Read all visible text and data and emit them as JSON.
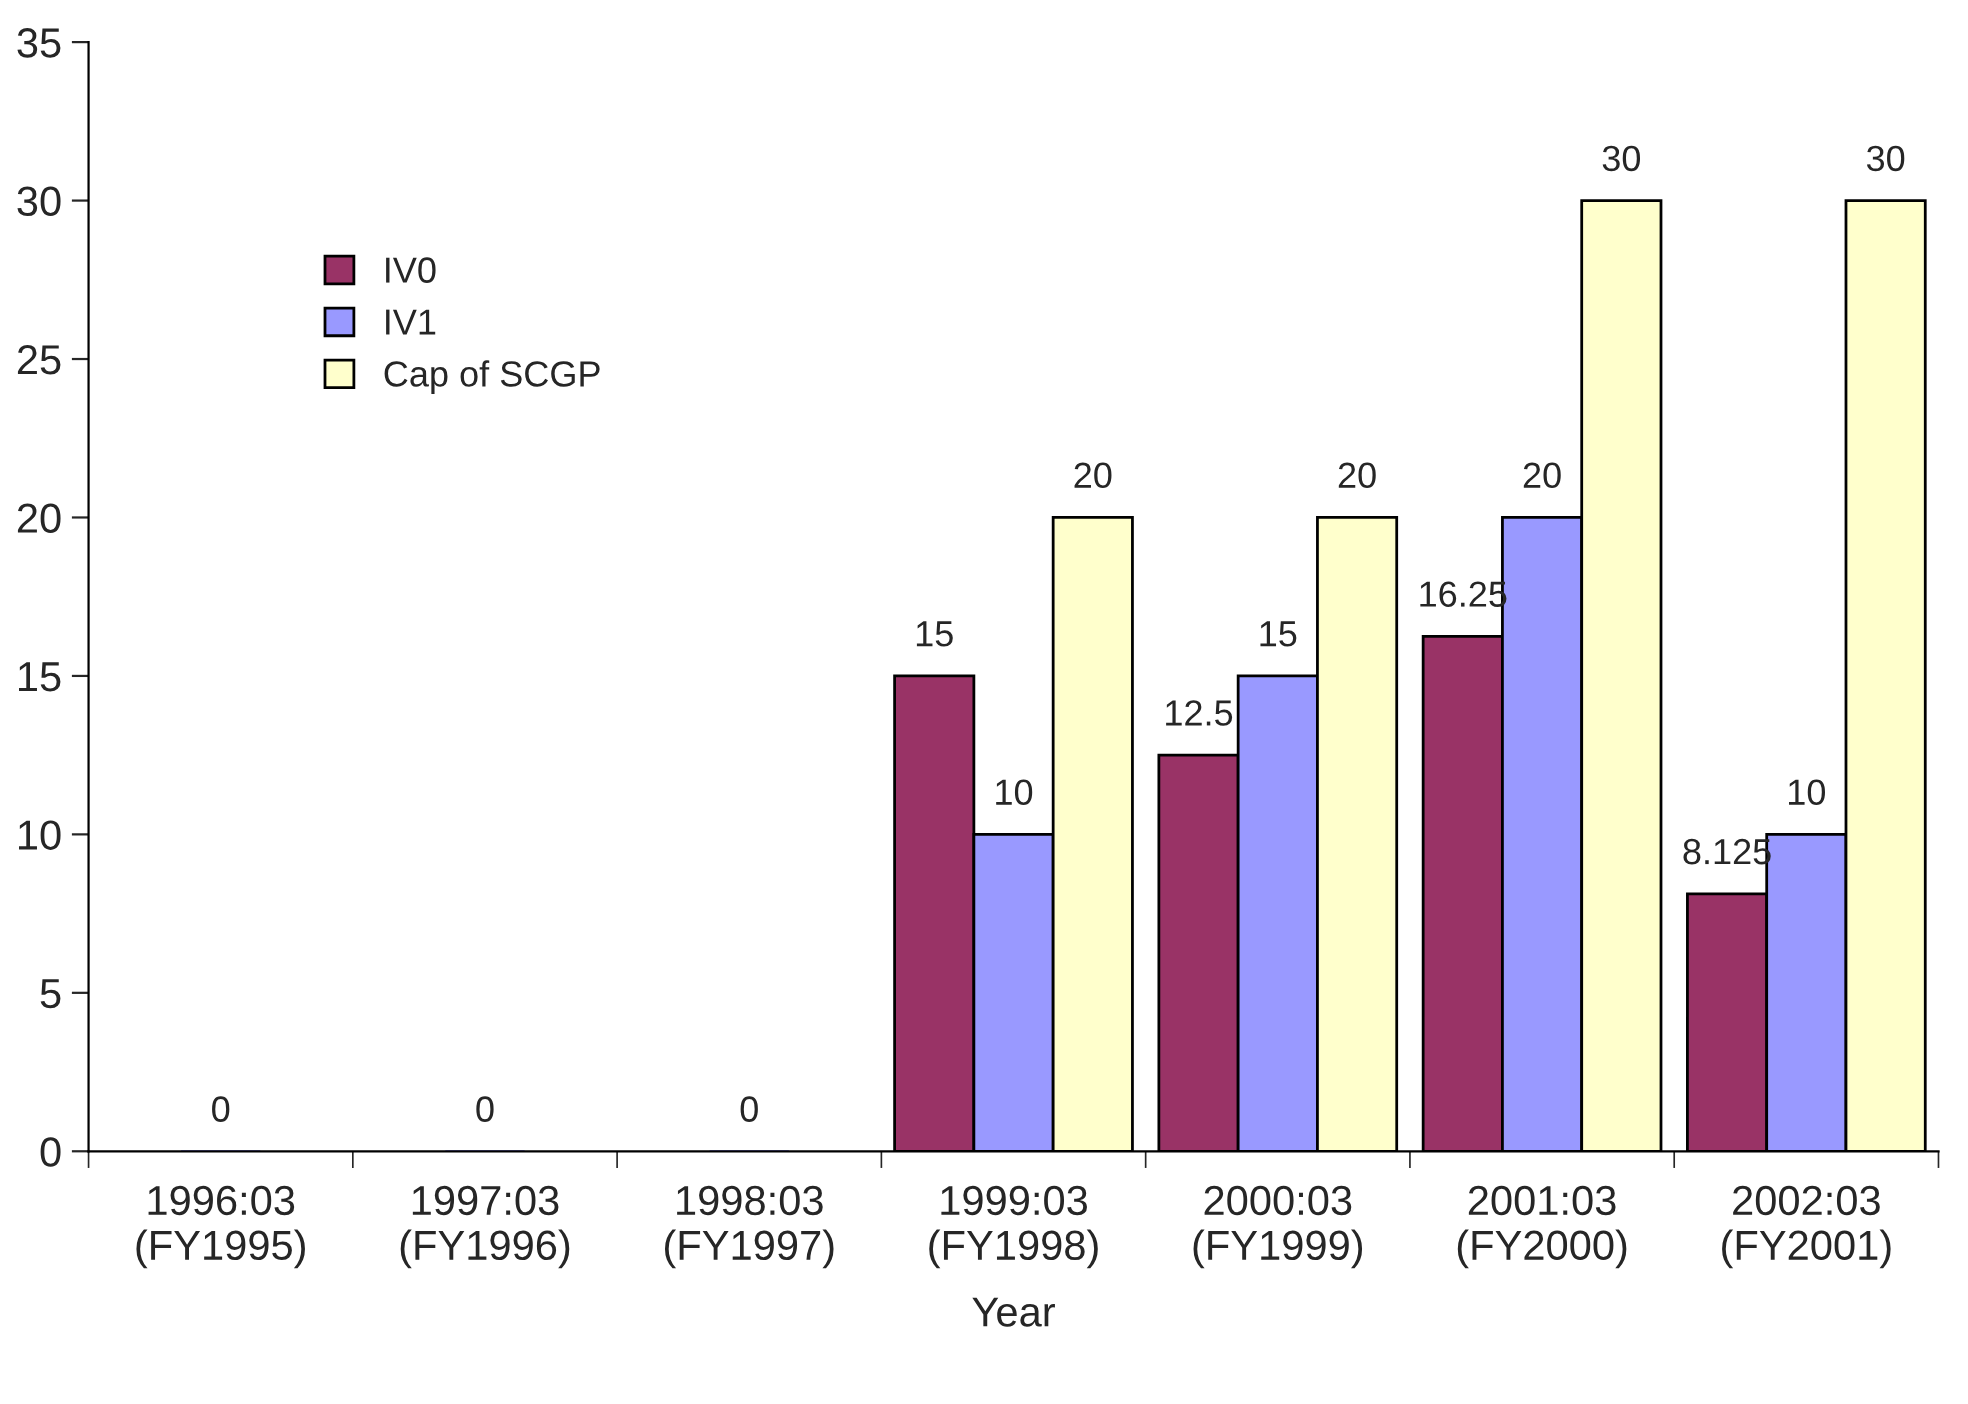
{
  "chart_data": {
    "type": "bar",
    "xlabel": "Year",
    "categories": [
      "1996:03\n(FY1995)",
      "1997:03\n(FY1996)",
      "1998:03\n(FY1997)",
      "1999:03\n(FY1998)",
      "2000:03\n(FY1999)",
      "2001:03\n(FY2000)",
      "2002:03\n(FY2001)"
    ],
    "series": [
      {
        "name": "IV0",
        "color": "#993366",
        "values": [
          null,
          null,
          null,
          15,
          12.5,
          16.25,
          8.125
        ]
      },
      {
        "name": "IV1",
        "color": "#9999ff",
        "values": [
          0,
          0,
          0,
          10,
          15,
          20,
          10
        ]
      },
      {
        "name": "Cap of SCGP",
        "color": "#ffffcc",
        "values": [
          null,
          null,
          null,
          20,
          20,
          30,
          30
        ]
      }
    ],
    "ylim": [
      0,
      35
    ],
    "yticks": [
      0,
      5,
      10,
      15,
      20,
      25,
      30,
      35
    ],
    "data_labels": true,
    "legend": "top left",
    "grid": false
  }
}
